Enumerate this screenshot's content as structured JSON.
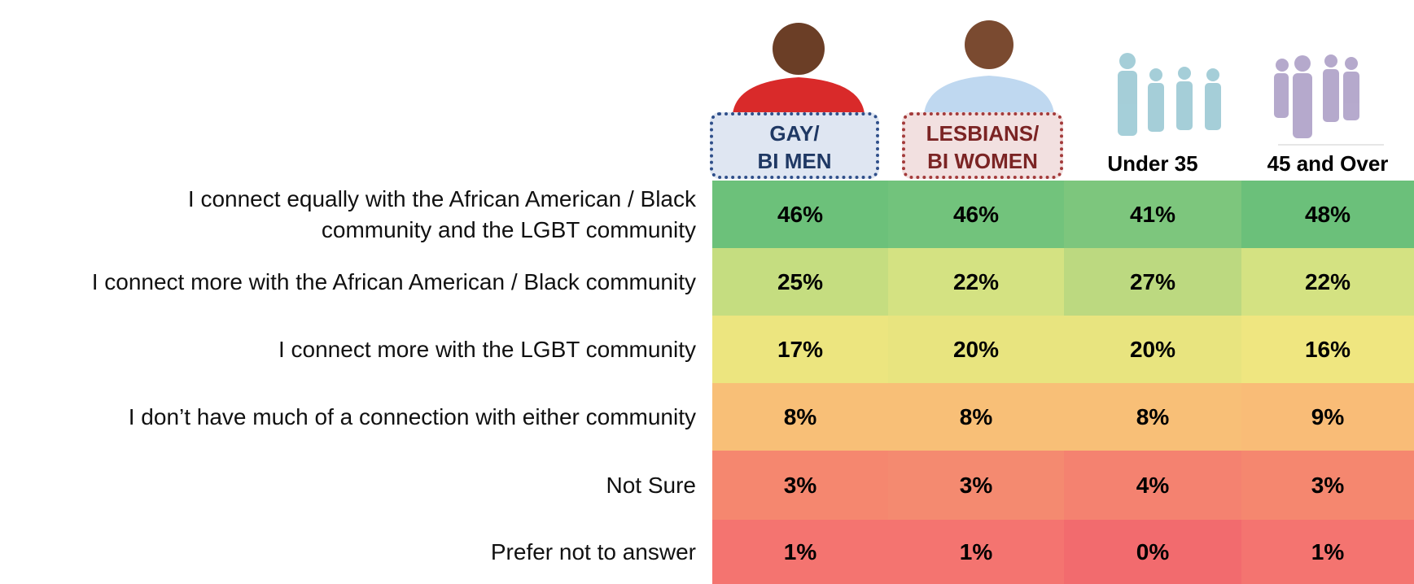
{
  "table": {
    "columns": [
      {
        "lines": [
          "GAY/",
          "BI MEN"
        ]
      },
      {
        "lines": [
          "LESBIANS/",
          "BI WOMEN"
        ]
      },
      {
        "lines": [
          "Under 35"
        ]
      },
      {
        "lines": [
          "45 and Over"
        ]
      }
    ],
    "rows": [
      {
        "label": [
          "I connect equally with the African American / Black",
          "community and the LGBT community"
        ],
        "cells": [
          "46%",
          "46%",
          "41%",
          "48%"
        ],
        "colors": [
          "#6cc17a",
          "#72c37c",
          "#7dc67d",
          "#6bc07a"
        ]
      },
      {
        "label": [
          "I connect more with the African American / Black community"
        ],
        "cells": [
          "25%",
          "22%",
          "27%",
          "22%"
        ],
        "colors": [
          "#c5dd80",
          "#d4e282",
          "#bcd980",
          "#d4e282"
        ]
      },
      {
        "label": [
          "I connect more with the LGBT community"
        ],
        "cells": [
          "17%",
          "20%",
          "20%",
          "16%"
        ],
        "colors": [
          "#ece57f",
          "#e8e47f",
          "#e8e47f",
          "#efe680"
        ]
      },
      {
        "label": [
          "I don’t have much of a connection with either community"
        ],
        "cells": [
          "8%",
          "8%",
          "8%",
          "9%"
        ],
        "colors": [
          "#f8bf77",
          "#f8bf77",
          "#f8bf77",
          "#f9bc77"
        ]
      },
      {
        "label": [
          "Not Sure"
        ],
        "cells": [
          "3%",
          "3%",
          "4%",
          "3%"
        ],
        "colors": [
          "#f5876f",
          "#f48a70",
          "#f48270",
          "#f5876f"
        ]
      },
      {
        "label": [
          "Prefer not to answer"
        ],
        "cells": [
          "1%",
          "1%",
          "0%",
          "1%"
        ],
        "colors": [
          "#f47470",
          "#f47470",
          "#f26b6e",
          "#f47470"
        ]
      }
    ]
  }
}
